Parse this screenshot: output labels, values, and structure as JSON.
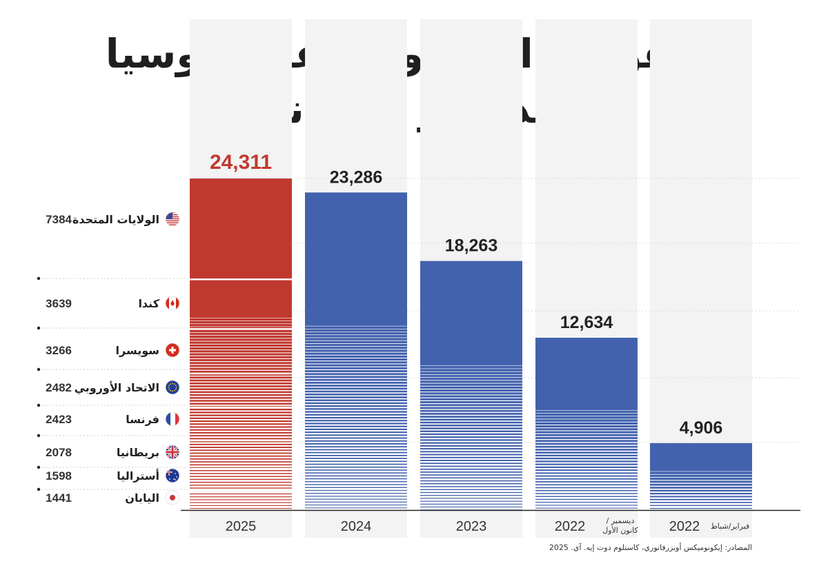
{
  "title": {
    "line1": "العقوبات المفروضة على روسيا",
    "line2": "بعد غزو أوكرانيا"
  },
  "source": "المصادر: إيكونوميكس أوبزرفاتوري، كاستلوم دوت إيه. آي. 2025",
  "colors": {
    "highlight": "#c0392f",
    "series": "#4362ad",
    "column_bg": "#f3f3f3",
    "axis": "#222222"
  },
  "chart_data": {
    "type": "bar",
    "ylim": [
      0,
      25000
    ],
    "categories": [
      "2025",
      "2024",
      "2023",
      "2022",
      "2022"
    ],
    "category_notes": [
      "",
      "",
      "",
      "ديسمبر / كانون الأول",
      "فبراير/شباط"
    ],
    "values": [
      24311,
      23286,
      18263,
      12634,
      4906
    ],
    "value_labels": [
      "24,311",
      "23,286",
      "18,263",
      "12,634",
      "4,906"
    ],
    "highlight_index": 0,
    "breakdown_2025": [
      {
        "country": "الولايات المتحدة",
        "value": 7384,
        "flag": "us-flag-icon"
      },
      {
        "country": "كندا",
        "value": 3639,
        "flag": "canada-flag-icon"
      },
      {
        "country": "سويسرا",
        "value": 3266,
        "flag": "switzerland-flag-icon"
      },
      {
        "country": "الاتحاد الأوروبي",
        "value": 2482,
        "flag": "eu-flag-icon"
      },
      {
        "country": "فرنسا",
        "value": 2423,
        "flag": "france-flag-icon"
      },
      {
        "country": "بريطانيا",
        "value": 2078,
        "flag": "uk-flag-icon"
      },
      {
        "country": "أستراليا",
        "value": 1598,
        "flag": "australia-flag-icon"
      },
      {
        "country": "اليابان",
        "value": 1441,
        "flag": "japan-flag-icon"
      }
    ]
  }
}
